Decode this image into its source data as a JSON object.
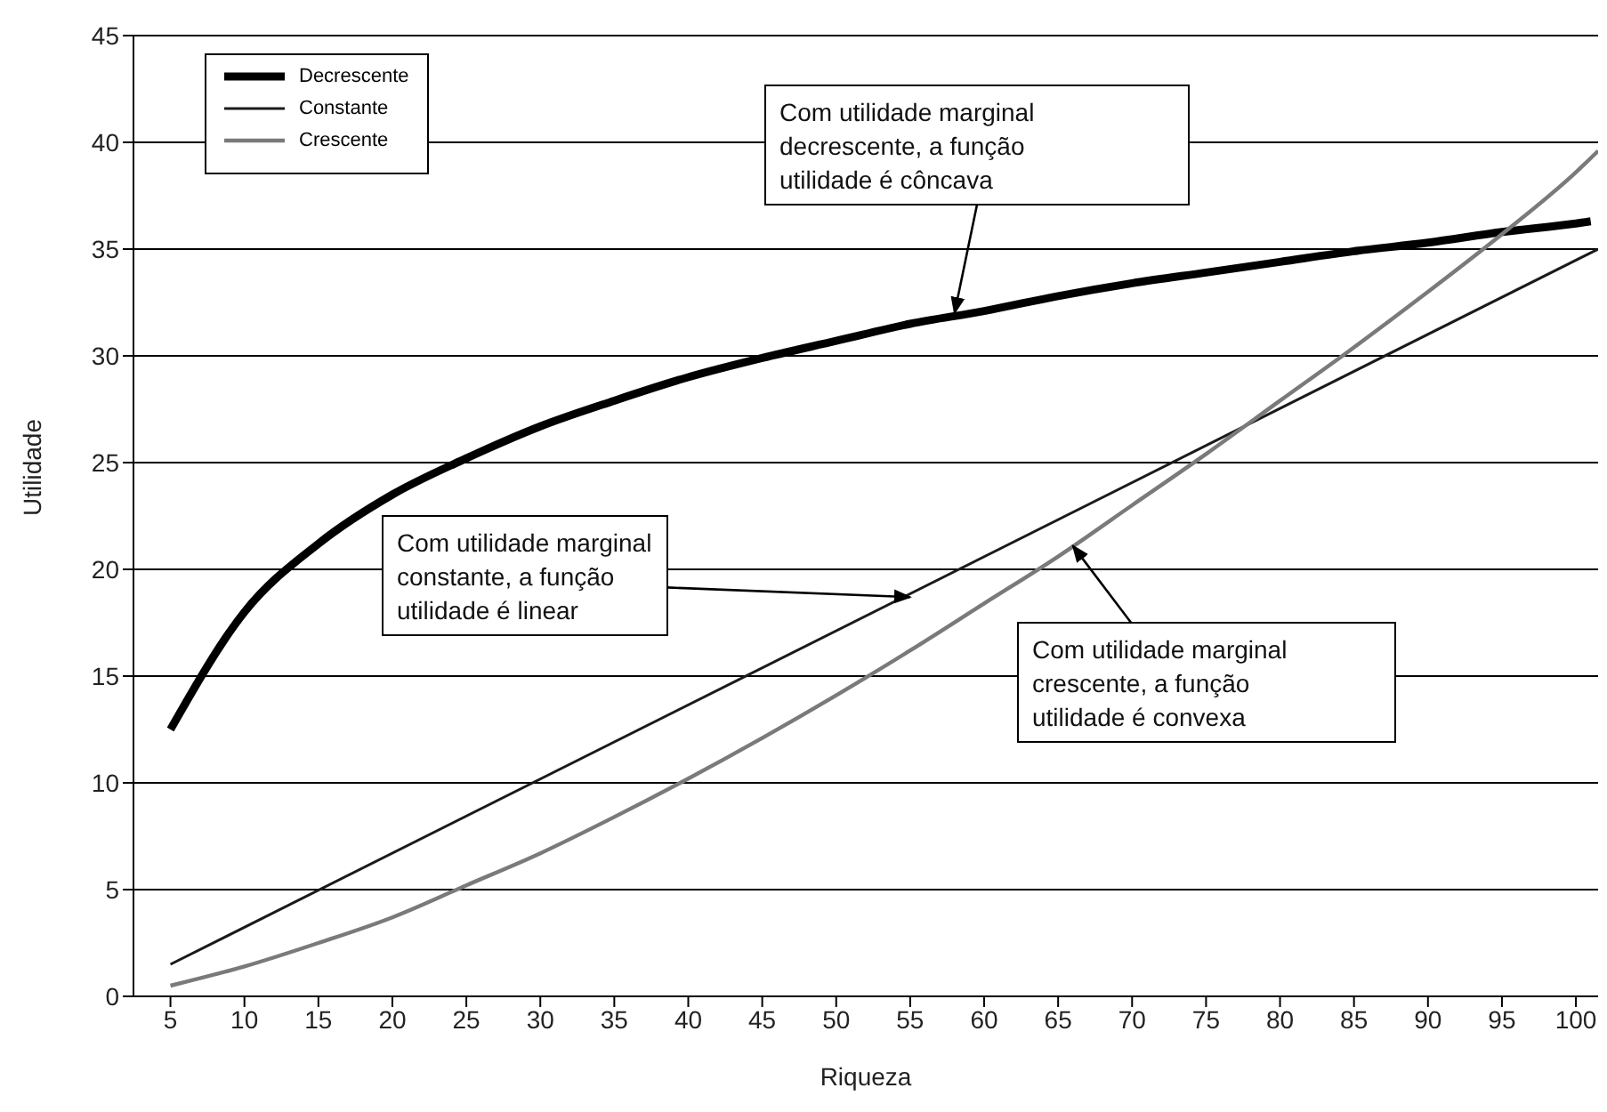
{
  "chart_data": {
    "type": "line",
    "xlabel": "Riqueza",
    "ylabel": "Utilidade",
    "xlim": [
      2.5,
      101.5
    ],
    "xticks": [
      5,
      10,
      15,
      20,
      25,
      30,
      35,
      40,
      45,
      50,
      55,
      60,
      65,
      70,
      75,
      80,
      85,
      90,
      95,
      100
    ],
    "ylim": [
      0,
      45
    ],
    "yticks": [
      0,
      5,
      10,
      15,
      20,
      25,
      30,
      35,
      40,
      45
    ],
    "grid": "y",
    "legend": "top left",
    "marker": "none",
    "line_style": "solid",
    "series": [
      {
        "name": "Decrescente",
        "color": "#000000",
        "x": [
          5,
          10,
          15,
          20,
          25,
          30,
          35,
          40,
          45,
          50,
          55,
          60,
          65,
          70,
          75,
          80,
          85,
          90,
          95,
          100,
          101
        ],
        "values": [
          12.5,
          18.0,
          21.2,
          23.5,
          25.2,
          26.7,
          27.9,
          29.0,
          29.9,
          30.7,
          31.5,
          32.1,
          32.8,
          33.4,
          33.9,
          34.4,
          34.9,
          35.3,
          35.8,
          36.2,
          36.3
        ]
      },
      {
        "name": "Constante",
        "color": "#1a1a1a",
        "x": [
          5,
          101.5
        ],
        "values": [
          1.5,
          35
        ]
      },
      {
        "name": "Crescente",
        "color": "#7a7a7a",
        "x": [
          5,
          10,
          15,
          20,
          25,
          30,
          35,
          40,
          45,
          50,
          55,
          60,
          65,
          70,
          75,
          80,
          85,
          90,
          95,
          100,
          101.5
        ],
        "values": [
          0.5,
          1.4,
          2.5,
          3.7,
          5.2,
          6.7,
          8.4,
          10.2,
          12.1,
          14.1,
          16.2,
          18.4,
          20.6,
          23.0,
          25.4,
          27.9,
          30.4,
          33.0,
          35.7,
          38.6,
          39.6
        ]
      }
    ],
    "annotations": [
      {
        "text": "Com utilidade marginal\ndecrescente, a função\nutilidade é côncava",
        "x": 58,
        "y": 32.0
      },
      {
        "text": "Com utilidade marginal\nconstante, a função\nutilidade é linear",
        "x": 55,
        "y": 18.7
      },
      {
        "text": "Com utilidade marginal\ncrescente, a função\nutilidade é convexa",
        "x": 66,
        "y": 21.1
      }
    ]
  }
}
